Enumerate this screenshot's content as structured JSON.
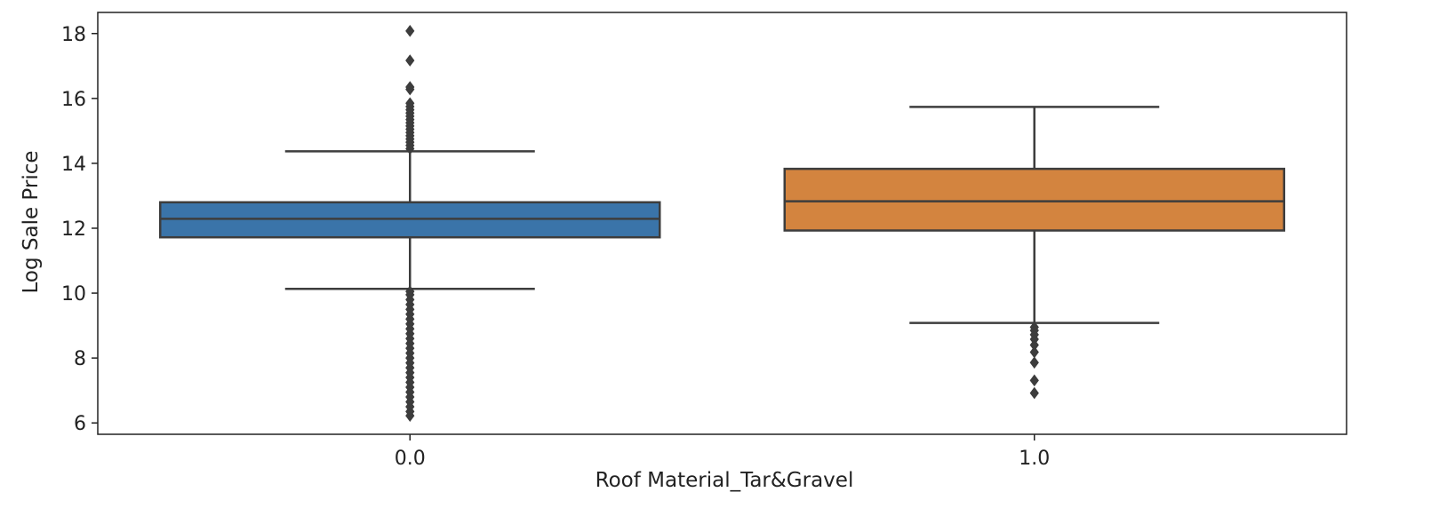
{
  "chart_data": {
    "type": "box",
    "xlabel": "Roof Material_Tar&Gravel",
    "ylabel": "Log Sale Price",
    "ylim": [
      5.65,
      18.65
    ],
    "yticks": [
      6,
      8,
      10,
      12,
      14,
      16,
      18
    ],
    "ytick_labels": [
      "6",
      "8",
      "10",
      "12",
      "14",
      "16",
      "18"
    ],
    "grid": false,
    "categories": [
      "0.0",
      "1.0"
    ],
    "boxes": [
      {
        "category": "0.0",
        "color": "#3a74a9",
        "q1": 11.72,
        "median": 12.29,
        "q3": 12.8,
        "whisker_low": 10.13,
        "whisker_high": 14.37,
        "outliers_high": [
          14.45,
          14.55,
          14.65,
          14.75,
          14.85,
          14.95,
          15.05,
          15.15,
          15.25,
          15.35,
          15.45,
          15.55,
          15.65,
          15.75,
          15.85,
          16.28,
          16.35,
          17.17,
          18.08
        ],
        "outliers_low": [
          6.22,
          6.35,
          6.5,
          6.65,
          6.8,
          6.95,
          7.1,
          7.25,
          7.4,
          7.55,
          7.7,
          7.85,
          8.0,
          8.15,
          8.3,
          8.45,
          8.6,
          8.75,
          8.9,
          9.05,
          9.2,
          9.35,
          9.5,
          9.65,
          9.8,
          9.95,
          10.05
        ]
      },
      {
        "category": "1.0",
        "color": "#d3843f",
        "q1": 11.93,
        "median": 12.83,
        "q3": 13.83,
        "whisker_low": 9.08,
        "whisker_high": 15.74,
        "outliers_high": [],
        "outliers_low": [
          8.95,
          8.85,
          8.72,
          8.58,
          8.4,
          8.18,
          7.86,
          7.31,
          6.92
        ]
      }
    ]
  }
}
